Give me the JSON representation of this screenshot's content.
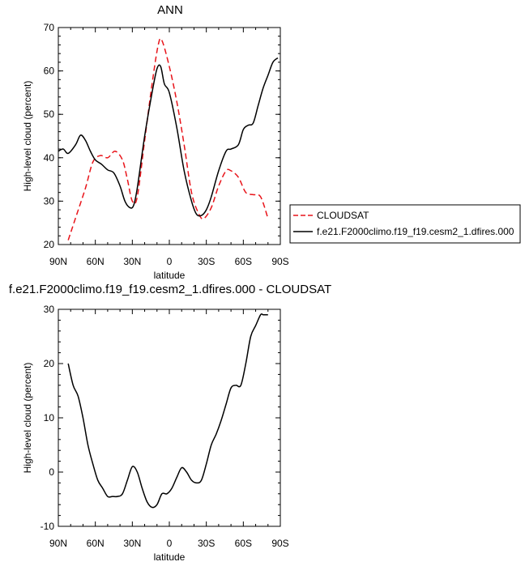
{
  "chart_data": [
    {
      "type": "line",
      "title": "ANN",
      "xlabel": "latitude",
      "ylabel": "High-level cloud (percent)",
      "xlim": [
        90,
        -90
      ],
      "ylim": [
        20,
        70
      ],
      "xticks": [
        90,
        60,
        30,
        0,
        -30,
        -60,
        -90
      ],
      "xtick_labels": [
        "90N",
        "60N",
        "30N",
        "0",
        "30S",
        "60S",
        "90S"
      ],
      "yticks": [
        20,
        30,
        40,
        50,
        60,
        70
      ],
      "ytick_labels": [
        "20",
        "30",
        "40",
        "50",
        "60",
        "70"
      ],
      "legend_position": "right",
      "series": [
        {
          "name": "CLOUDSAT",
          "color": "#e8141a",
          "dash": "dashed",
          "x": [
            82,
            75,
            68,
            62,
            56,
            50,
            44,
            38,
            34,
            30,
            26,
            20,
            14,
            9,
            6,
            0,
            -6,
            -12,
            -18,
            -24,
            -28,
            -34,
            -40,
            -46,
            -50,
            -56,
            -62,
            -68,
            -74,
            -80
          ],
          "y": [
            21,
            27,
            33,
            39,
            40.5,
            40,
            41.5,
            39.5,
            35,
            30,
            31,
            44,
            57,
            66,
            67,
            61,
            53,
            43,
            32,
            27,
            26,
            28.5,
            33.5,
            37,
            37,
            35.5,
            32,
            31.5,
            31,
            26
          ]
        },
        {
          "name": "f.e21.F2000climo.f19_f19.cesm2_1.dfires.000",
          "color": "#000000",
          "dash": "solid",
          "x": [
            90,
            86,
            82,
            76,
            72,
            68,
            64,
            60,
            55,
            50,
            45,
            40,
            36,
            32,
            29,
            26,
            20,
            14,
            10,
            7,
            4,
            0,
            -6,
            -12,
            -18,
            -22,
            -26,
            -30,
            -34,
            -40,
            -46,
            -50,
            -56,
            -60,
            -64,
            -68,
            -72,
            -76,
            -80,
            -84,
            -88
          ],
          "y": [
            41.5,
            42,
            41,
            43,
            45.2,
            44,
            41.5,
            39.5,
            38.5,
            37.2,
            36.5,
            33.5,
            30,
            28.5,
            29,
            33,
            45,
            55,
            60.5,
            61,
            57,
            55,
            47,
            37,
            30,
            27,
            26.7,
            28,
            31,
            37,
            41.5,
            42,
            43,
            46.5,
            47.5,
            48,
            52,
            56,
            59,
            62,
            63
          ]
        }
      ]
    },
    {
      "type": "line",
      "title": "f.e21.F2000climo.f19_f19.cesm2_1.dfires.000 - CLOUDSAT",
      "xlabel": "latitude",
      "ylabel": "High-level cloud (percent)",
      "xlim": [
        90,
        -90
      ],
      "ylim": [
        -10,
        30
      ],
      "xticks": [
        90,
        60,
        30,
        0,
        -30,
        -60,
        -90
      ],
      "xtick_labels": [
        "90N",
        "60N",
        "30N",
        "0",
        "30S",
        "60S",
        "90S"
      ],
      "yticks": [
        -10,
        0,
        10,
        20,
        30
      ],
      "ytick_labels": [
        "-10",
        "0",
        "10",
        "20",
        "30"
      ],
      "series": [
        {
          "color": "#000000",
          "dash": "solid",
          "x": [
            82,
            78,
            74,
            70,
            66,
            62,
            58,
            54,
            50,
            46,
            42,
            38,
            34,
            30,
            26,
            22,
            18,
            14,
            10,
            6,
            2,
            -2,
            -6,
            -10,
            -14,
            -18,
            -22,
            -26,
            -30,
            -34,
            -38,
            -42,
            -46,
            -50,
            -54,
            -58,
            -62,
            -66,
            -70,
            -74,
            -76,
            -78,
            -80
          ],
          "y": [
            20,
            16,
            14,
            10,
            5,
            1.5,
            -1.5,
            -3,
            -4.5,
            -4.5,
            -4.5,
            -4,
            -1.5,
            1,
            0,
            -3,
            -5.5,
            -6.5,
            -6,
            -4,
            -4,
            -3,
            -1,
            0.8,
            0,
            -1.5,
            -2,
            -1.5,
            1.5,
            5,
            7,
            9.5,
            12.5,
            15.5,
            16,
            16,
            20,
            25,
            27,
            29,
            29,
            29,
            29
          ]
        }
      ]
    }
  ]
}
